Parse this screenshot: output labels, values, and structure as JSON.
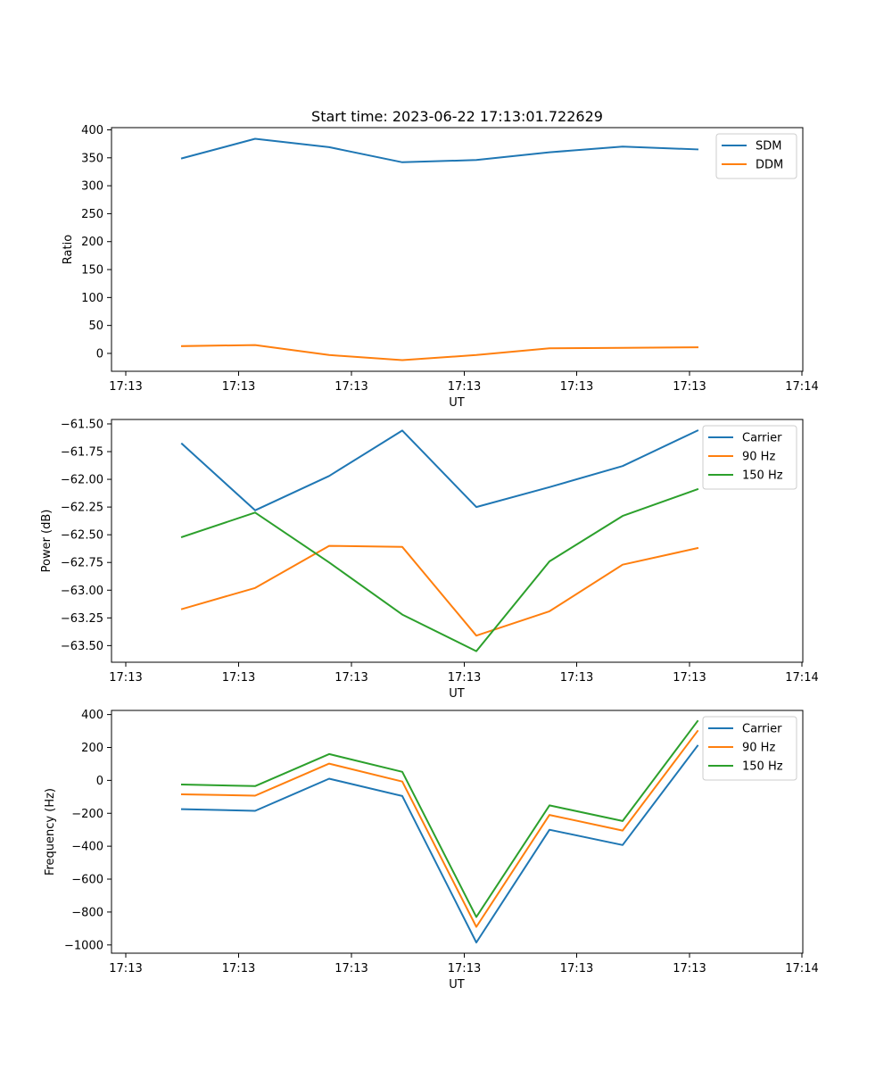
{
  "chart_data": [
    {
      "type": "line",
      "title": "Start time: 2023-06-22 17:13:01.722629",
      "xlabel": "UT",
      "ylabel": "Ratio",
      "x_tick_labels": [
        "17:13",
        "17:13",
        "17:13",
        "17:13",
        "17:13",
        "17:13",
        "17:14"
      ],
      "y_ticks": [
        0,
        50,
        100,
        150,
        200,
        250,
        300,
        350,
        400
      ],
      "ylim": [
        -32,
        404
      ],
      "x": [
        1,
        2,
        3,
        4,
        5,
        6,
        7,
        8
      ],
      "series": [
        {
          "name": "SDM",
          "color": "#1f77b4",
          "values": [
            349,
            384,
            369,
            342,
            346,
            360,
            370,
            365
          ]
        },
        {
          "name": "DDM",
          "color": "#ff7f0e",
          "values": [
            13,
            15,
            -3,
            -12,
            -3,
            9,
            10,
            11
          ]
        }
      ],
      "legend": "top-right",
      "grid": false
    },
    {
      "type": "line",
      "title": "",
      "xlabel": "UT",
      "ylabel": "Power (dB)",
      "x_tick_labels": [
        "17:13",
        "17:13",
        "17:13",
        "17:13",
        "17:13",
        "17:13",
        "17:14"
      ],
      "y_ticks": [
        -63.5,
        -63.25,
        -63.0,
        -62.75,
        -62.5,
        -62.25,
        -62.0,
        -61.75,
        -61.5
      ],
      "y_tick_labels": [
        "−63.50",
        "−63.25",
        "−63.00",
        "−62.75",
        "−62.50",
        "−62.25",
        "−62.00",
        "−61.75",
        "−61.50"
      ],
      "ylim": [
        -63.65,
        -61.46
      ],
      "x": [
        1,
        2,
        3,
        4,
        5,
        6,
        7,
        8
      ],
      "series": [
        {
          "name": "Carrier",
          "color": "#1f77b4",
          "values": [
            -61.68,
            -62.28,
            -61.97,
            -61.56,
            -62.25,
            -62.07,
            -61.88,
            -61.56
          ]
        },
        {
          "name": "90 Hz",
          "color": "#ff7f0e",
          "values": [
            -63.17,
            -62.98,
            -62.6,
            -62.61,
            -63.41,
            -63.19,
            -62.77,
            -62.62
          ]
        },
        {
          "name": "150 Hz",
          "color": "#2ca02c",
          "values": [
            -62.52,
            -62.3,
            -62.75,
            -63.22,
            -63.55,
            -62.74,
            -62.33,
            -62.09
          ]
        }
      ],
      "legend": "top-right",
      "grid": false
    },
    {
      "type": "line",
      "title": "",
      "xlabel": "UT",
      "ylabel": "Frequency (Hz)",
      "x_tick_labels": [
        "17:13",
        "17:13",
        "17:13",
        "17:13",
        "17:13",
        "17:13",
        "17:14"
      ],
      "y_ticks": [
        -1000,
        -800,
        -600,
        -400,
        -200,
        0,
        200,
        400
      ],
      "y_tick_labels": [
        "−1000",
        "−800",
        "−600",
        "−400",
        "−200",
        "0",
        "200",
        "400"
      ],
      "ylim": [
        -1050,
        425
      ],
      "x": [
        1,
        2,
        3,
        4,
        5,
        6,
        7,
        8
      ],
      "series": [
        {
          "name": "Carrier",
          "color": "#1f77b4",
          "values": [
            -175,
            -185,
            10,
            -95,
            -985,
            -300,
            -393,
            210
          ]
        },
        {
          "name": "90 Hz",
          "color": "#ff7f0e",
          "values": [
            -85,
            -93,
            102,
            -7,
            -890,
            -210,
            -305,
            300
          ]
        },
        {
          "name": "150 Hz",
          "color": "#2ca02c",
          "values": [
            -25,
            -35,
            160,
            52,
            -830,
            -152,
            -247,
            360
          ]
        }
      ],
      "legend": "top-right",
      "grid": false
    }
  ]
}
